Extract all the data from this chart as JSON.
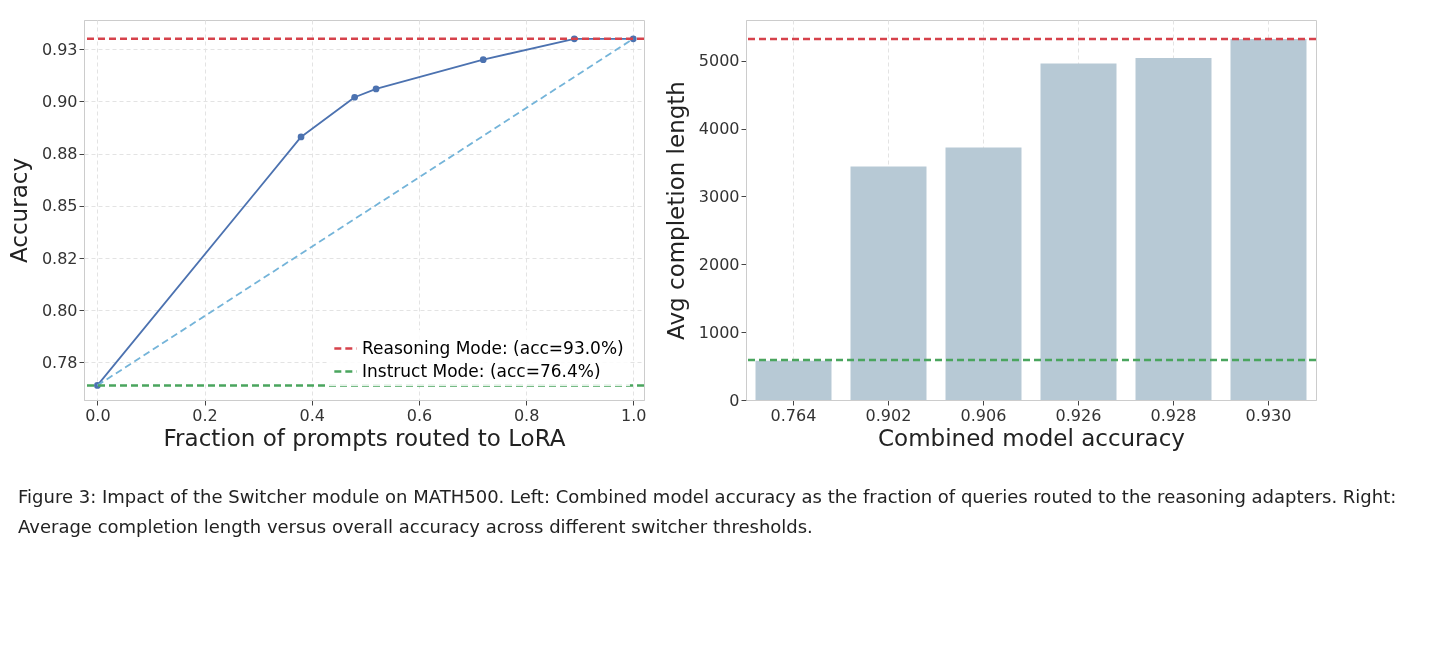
{
  "chart_data": [
    {
      "type": "line",
      "xlabel": "Fraction of prompts routed to LoRA",
      "ylabel": "Accuracy",
      "xlim": [
        -0.025,
        1.02
      ],
      "ylim": [
        0.757,
        0.939
      ],
      "xticks": [
        {
          "value": 0,
          "label": "0.0"
        },
        0.2,
        0.4,
        0.6,
        0.8,
        {
          "value": 1,
          "label": "1.0"
        }
      ],
      "yticks": [
        {
          "value": 0.775,
          "label": "0.78"
        },
        {
          "value": 0.8,
          "label": "0.80"
        },
        {
          "value": 0.825,
          "label": "0.82"
        },
        {
          "value": 0.85,
          "label": "0.85"
        },
        {
          "value": 0.875,
          "label": "0.88"
        },
        {
          "value": 0.9,
          "label": "0.90"
        },
        {
          "value": 0.925,
          "label": "0.93"
        }
      ],
      "grid": true,
      "legend": "bottom right",
      "series": [
        {
          "color": "#4c72b0",
          "marker": "circle",
          "line_style": "solid",
          "x": [
            0,
            0.38,
            0.48,
            0.52,
            0.72,
            0.89,
            1.0
          ],
          "values": [
            0.764,
            0.883,
            0.902,
            0.906,
            0.92,
            0.93,
            0.93
          ]
        },
        {
          "color": "#74b4d9",
          "marker": "none",
          "line_style": "dashed",
          "x": [
            0,
            1
          ],
          "values": [
            0.764,
            0.93
          ]
        }
      ],
      "ref_lines": [
        {
          "axis": "y",
          "value": 0.93,
          "label": "Reasoning Mode: (acc=93.0%)",
          "color": "#d6424b",
          "line_style": "dashed"
        },
        {
          "axis": "y",
          "value": 0.764,
          "label": "Instruct Mode: (acc=76.4%)",
          "color": "#4aa55e",
          "line_style": "dashed"
        }
      ],
      "annotations": [
        "Figure 3: Impact of the Switcher module on MATH500. Left: Combined model accuracy as the fraction of queries routed to the reasoning adapters.  Right:  Average completion length versus overall accuracy across different switcher thresholds."
      ]
    },
    {
      "type": "bar",
      "xlabel": "Combined model accuracy",
      "ylabel": "Avg completion length",
      "categories": [
        "0.764",
        "0.902",
        "0.906",
        "0.926",
        "0.928",
        "0.930"
      ],
      "values": [
        580,
        3440,
        3720,
        4960,
        5040,
        5320
      ],
      "color": "#b7c9d5",
      "ylim": [
        0,
        5600
      ],
      "yticks": [
        0,
        {
          "value": 1000,
          "label": "1000"
        },
        {
          "value": 2000,
          "label": "2000"
        },
        {
          "value": 3000,
          "label": "3000"
        },
        {
          "value": 4000,
          "label": "4000"
        },
        {
          "value": 5000,
          "label": "5000"
        }
      ],
      "grid": "x",
      "ref_lines": [
        {
          "axis": "y",
          "value": 5320,
          "color": "#d6424b",
          "line_style": "dashed"
        },
        {
          "axis": "y",
          "value": 590,
          "color": "#4aa55e",
          "line_style": "dashed"
        }
      ]
    }
  ]
}
